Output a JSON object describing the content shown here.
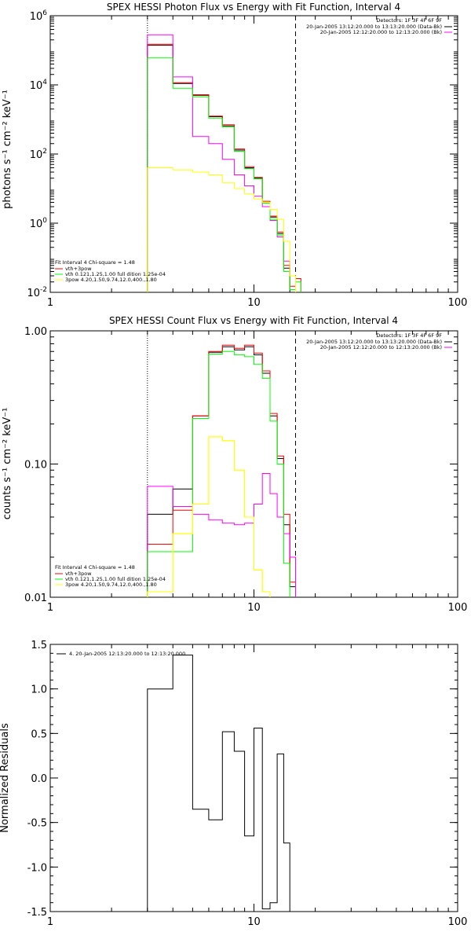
{
  "chart_data": [
    {
      "type": "line",
      "title": "SPEX HESSI Photon Flux vs Energy with Fit Function, Interval 4",
      "xlabel": "",
      "ylabel": "photons s⁻¹ cm⁻² keV⁻¹",
      "xscale": "log",
      "yscale": "log",
      "xlim": [
        1,
        100
      ],
      "ylim": [
        0.01,
        1000000
      ],
      "x_ticks": [
        {
          "value": 1,
          "label": "1"
        },
        {
          "value": 10,
          "label": "10"
        },
        {
          "value": 100,
          "label": "100"
        }
      ],
      "y_ticks": [
        {
          "value": 0.01,
          "base": "10",
          "exp": "-2"
        },
        {
          "value": 1,
          "base": "10",
          "exp": "0"
        },
        {
          "value": 100,
          "base": "10",
          "exp": "2"
        },
        {
          "value": 10000,
          "base": "10",
          "exp": "4"
        },
        {
          "value": 1000000,
          "base": "10",
          "exp": "6"
        }
      ],
      "vlines": [
        {
          "x": 3,
          "style": "dotted"
        },
        {
          "x": 16,
          "style": "dashed"
        }
      ],
      "energy_edges": [
        3,
        4,
        5,
        6,
        7,
        8,
        9,
        10,
        11,
        12,
        13,
        14,
        15,
        16,
        17,
        18,
        19
      ],
      "series": [
        {
          "color": "#000000",
          "values": [
            140000,
            11000,
            5000,
            1200,
            650,
            130,
            40,
            20,
            4,
            1.5,
            0.5,
            0.05
          ]
        },
        {
          "color": "#ff0000",
          "values": [
            150000,
            11500,
            5200,
            1250,
            700,
            140,
            43,
            21,
            4.3,
            1.6,
            0.55,
            0.06,
            0.015,
            0.025
          ]
        },
        {
          "color": "#ff00ff",
          "values": [
            280000,
            17000,
            320,
            200,
            70,
            25,
            12,
            6,
            3,
            1.2,
            0.4,
            0.08,
            0.03
          ]
        },
        {
          "color": "#00ff00",
          "values": [
            60000,
            8000,
            4500,
            1100,
            600,
            120,
            38,
            19,
            3.8,
            1.3,
            0.45,
            0.04,
            0.012,
            0.02
          ]
        },
        {
          "color": "#ffff00",
          "values": [
            40,
            35,
            30,
            25,
            15,
            10,
            7,
            5,
            4,
            2.5,
            1.3,
            0.3,
            0.03
          ]
        }
      ],
      "legend_top": {
        "header": "Detectors: 1F 3F 4F 6F 9F",
        "entries": [
          {
            "label": "20-Jan-2005 13:12:20.000 to 13:13:20.000 (Data-Bk)",
            "color": "#000000"
          },
          {
            "label": "20-Jan-2005 12:12:20.000 to 12:13:20.000 (Bk)",
            "color": "#ff00ff"
          }
        ]
      },
      "legend_fit": {
        "header": "Fit Interval  4    Chi-square = 1.48",
        "entries": [
          {
            "label": "vth+3pow",
            "color": "#ff0000"
          },
          {
            "label": "vth 0.121,1.25,1.00   full dition 1.25e-04",
            "color": "#00ff00"
          },
          {
            "label": "3pow 4.20,1.50,9.74,12.0,400.,1.80",
            "color": "#ffff00"
          }
        ]
      }
    },
    {
      "type": "line",
      "title": "SPEX HESSI Count Flux vs Energy with Fit Function, Interval 4",
      "xlabel": "",
      "ylabel": "counts s⁻¹ cm⁻² keV⁻¹",
      "xscale": "log",
      "yscale": "log",
      "xlim": [
        1,
        100
      ],
      "ylim": [
        0.01,
        1.0
      ],
      "x_ticks": [
        {
          "value": 1,
          "label": "1"
        },
        {
          "value": 10,
          "label": "10"
        },
        {
          "value": 100,
          "label": "100"
        }
      ],
      "y_ticks": [
        {
          "value": 0.01,
          "label": "0.01"
        },
        {
          "value": 0.1,
          "label": "0.10"
        },
        {
          "value": 1.0,
          "label": "1.00"
        }
      ],
      "vlines": [
        {
          "x": 3,
          "style": "dotted"
        },
        {
          "x": 16,
          "style": "dashed"
        }
      ],
      "energy_edges": [
        3,
        4,
        5,
        6,
        7,
        8,
        9,
        10,
        11,
        12,
        13,
        14,
        15,
        16,
        17,
        18,
        19
      ],
      "series": [
        {
          "color": "#000000",
          "values": [
            0.042,
            0.065,
            0.23,
            0.69,
            0.76,
            0.72,
            0.76,
            0.66,
            0.48,
            0.23,
            0.11,
            0.035,
            0.012
          ]
        },
        {
          "color": "#ff0000",
          "values": [
            0.025,
            0.045,
            0.23,
            0.7,
            0.78,
            0.74,
            0.78,
            0.68,
            0.5,
            0.24,
            0.115,
            0.042,
            0.013
          ]
        },
        {
          "color": "#ff00ff",
          "values": [
            0.068,
            0.048,
            0.042,
            0.038,
            0.036,
            0.035,
            0.036,
            0.05,
            0.085,
            0.06,
            0.04,
            0.03,
            0.02
          ]
        },
        {
          "color": "#00ff00",
          "values": [
            0.022,
            0.022,
            0.22,
            0.67,
            0.7,
            0.66,
            0.64,
            0.56,
            0.44,
            0.21,
            0.1,
            0.018
          ]
        },
        {
          "color": "#ffff00",
          "values": [
            0.011,
            0.03,
            0.05,
            0.16,
            0.15,
            0.09,
            0.04,
            0.016,
            0.011
          ]
        },
        {
          "color": "#ffff00",
          "values": [
            0.011,
            0.03,
            0.05,
            0.16,
            0.15,
            0.09,
            0.04,
            0.016,
            0.011
          ]
        }
      ],
      "legend_top": {
        "header": "Detectors: 1F 3F 4F 6F 9F",
        "entries": [
          {
            "label": "20-Jan-2005 13:12:20.000 to 13:13:20.000 (Data-Bk)",
            "color": "#000000"
          },
          {
            "label": "20-Jan-2005 12:12:20.000 to 12:13:20.000 (Bk)",
            "color": "#ff00ff"
          }
        ]
      },
      "legend_fit": {
        "header": "Fit Interval  4    Chi-square = 1.48",
        "entries": [
          {
            "label": "vth+3pow",
            "color": "#ff0000"
          },
          {
            "label": "vth 0.121,1.25,1.00   full dition 1.25e-04",
            "color": "#00ff00"
          },
          {
            "label": "3pow 4.20,1.50,9.74,12.0,400.,1.80",
            "color": "#ffff00"
          }
        ]
      }
    },
    {
      "type": "line",
      "title": "",
      "xlabel": "",
      "ylabel": "Normalized Residuals",
      "xscale": "log",
      "yscale": "linear",
      "xlim": [
        1,
        100
      ],
      "ylim": [
        -1.5,
        1.5
      ],
      "x_ticks": [
        {
          "value": 1,
          "label": "1"
        },
        {
          "value": 10,
          "label": "10"
        },
        {
          "value": 100,
          "label": "100"
        }
      ],
      "y_ticks": [
        {
          "value": -1.5,
          "label": "-1.5"
        },
        {
          "value": -1.0,
          "label": "-1.0"
        },
        {
          "value": -0.5,
          "label": "-0.5"
        },
        {
          "value": 0.0,
          "label": "0.0"
        },
        {
          "value": 0.5,
          "label": "0.5"
        },
        {
          "value": 1.0,
          "label": "1.0"
        },
        {
          "value": 1.5,
          "label": "1.5"
        }
      ],
      "vlines": [],
      "energy_edges": [
        3,
        4,
        5,
        6,
        7,
        8,
        9,
        10,
        11,
        12,
        13,
        14,
        15,
        16,
        17
      ],
      "series": [
        {
          "color": "#000000",
          "values": [
            1.0,
            1.38,
            -0.35,
            -0.47,
            0.52,
            0.3,
            -0.65,
            0.56,
            -1.47,
            -1.4,
            0.27,
            -0.73
          ]
        }
      ],
      "legend_top": {
        "header": "",
        "entries": [
          {
            "label": "4. 20-Jan-2005 12:13:20.000 to 12:13:20.000",
            "color": "#000000"
          }
        ]
      },
      "legend_fit": {
        "header": "",
        "entries": []
      }
    }
  ]
}
